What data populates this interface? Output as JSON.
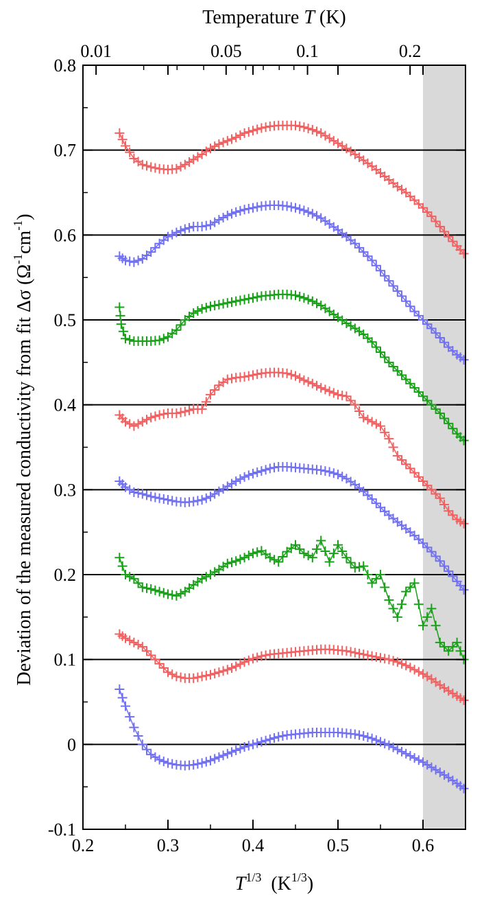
{
  "chart_data": {
    "type": "scatter",
    "title": "",
    "top_axis": {
      "label_prefix": "Temperature ",
      "label_var": "T",
      "label_suffix": " (K)",
      "ticks": [
        {
          "label": "0.01",
          "value": 0.01
        },
        {
          "label": "0.05",
          "value": 0.05
        },
        {
          "label": "0.1",
          "value": 0.1
        },
        {
          "label": "0.2",
          "value": 0.2
        }
      ]
    },
    "xlabel_var": "T",
    "xlabel_sup": "1/3",
    "xlabel_unit": "(K",
    "xlabel_unit_sup": "1/3",
    "xlabel_close": ")",
    "ylabel_text": "Deviation of the measured conductivity from fit  Δσ  (Ω",
    "ylabel_sup1": "-1",
    "ylabel_mid": "cm",
    "ylabel_sup2": "-1",
    "ylabel_close": ")",
    "xlim": [
      0.2,
      0.65
    ],
    "ylim": [
      -0.1,
      0.8
    ],
    "x_ticks": [
      "0.2",
      "0.3",
      "0.4",
      "0.5",
      "0.6"
    ],
    "y_ticks": [
      "-0.1",
      "0",
      "0.1",
      "0.2",
      "0.3",
      "0.4",
      "0.5",
      "0.6",
      "0.7",
      "0.8"
    ],
    "reference_lines": [
      0,
      0.1,
      0.2,
      0.3,
      0.4,
      0.5,
      0.6,
      0.7
    ],
    "shaded_region": {
      "from": 0.6,
      "to": 0.65,
      "color": "#d9d9d9"
    },
    "colors": {
      "red": "#f06060",
      "blue": "#7070f0",
      "green": "#18a018"
    },
    "series": [
      {
        "color": "red",
        "offset": 0.7,
        "x": [
          0.243,
          0.25,
          0.26,
          0.27,
          0.28,
          0.29,
          0.3,
          0.31,
          0.32,
          0.33,
          0.34,
          0.35,
          0.36,
          0.37,
          0.38,
          0.39,
          0.4,
          0.41,
          0.42,
          0.43,
          0.44,
          0.45,
          0.46,
          0.47,
          0.48,
          0.49,
          0.5,
          0.51,
          0.52,
          0.53,
          0.54,
          0.55,
          0.56,
          0.57,
          0.58,
          0.59,
          0.6,
          0.61,
          0.62,
          0.63,
          0.64,
          0.648
        ],
        "y": [
          0.72,
          0.705,
          0.69,
          0.683,
          0.68,
          0.678,
          0.677,
          0.678,
          0.683,
          0.689,
          0.695,
          0.702,
          0.707,
          0.711,
          0.715,
          0.72,
          0.723,
          0.726,
          0.728,
          0.729,
          0.729,
          0.729,
          0.727,
          0.724,
          0.72,
          0.714,
          0.708,
          0.702,
          0.695,
          0.688,
          0.681,
          0.673,
          0.665,
          0.657,
          0.65,
          0.641,
          0.632,
          0.622,
          0.61,
          0.598,
          0.587,
          0.578
        ]
      },
      {
        "color": "blue",
        "offset": 0.6,
        "x": [
          0.243,
          0.25,
          0.26,
          0.27,
          0.28,
          0.29,
          0.3,
          0.31,
          0.32,
          0.33,
          0.34,
          0.35,
          0.36,
          0.37,
          0.38,
          0.39,
          0.4,
          0.41,
          0.42,
          0.43,
          0.44,
          0.45,
          0.46,
          0.47,
          0.48,
          0.49,
          0.5,
          0.51,
          0.52,
          0.53,
          0.54,
          0.55,
          0.56,
          0.57,
          0.58,
          0.59,
          0.6,
          0.61,
          0.62,
          0.63,
          0.64,
          0.648
        ],
        "y": [
          0.575,
          0.57,
          0.568,
          0.572,
          0.58,
          0.59,
          0.598,
          0.603,
          0.607,
          0.61,
          0.61,
          0.612,
          0.618,
          0.623,
          0.627,
          0.63,
          0.632,
          0.634,
          0.635,
          0.635,
          0.634,
          0.632,
          0.629,
          0.625,
          0.62,
          0.613,
          0.606,
          0.598,
          0.59,
          0.58,
          0.57,
          0.558,
          0.546,
          0.534,
          0.522,
          0.51,
          0.5,
          0.49,
          0.479,
          0.468,
          0.459,
          0.453
        ]
      },
      {
        "color": "green",
        "offset": 0.5,
        "x": [
          0.243,
          0.245,
          0.25,
          0.26,
          0.27,
          0.28,
          0.29,
          0.3,
          0.31,
          0.32,
          0.33,
          0.34,
          0.35,
          0.36,
          0.37,
          0.38,
          0.39,
          0.4,
          0.41,
          0.42,
          0.43,
          0.44,
          0.45,
          0.46,
          0.47,
          0.48,
          0.49,
          0.5,
          0.51,
          0.52,
          0.53,
          0.54,
          0.55,
          0.56,
          0.57,
          0.58,
          0.59,
          0.6,
          0.61,
          0.62,
          0.63,
          0.64,
          0.648
        ],
        "y": [
          0.515,
          0.495,
          0.478,
          0.475,
          0.475,
          0.475,
          0.476,
          0.48,
          0.488,
          0.5,
          0.508,
          0.513,
          0.516,
          0.518,
          0.52,
          0.522,
          0.524,
          0.526,
          0.528,
          0.529,
          0.53,
          0.53,
          0.529,
          0.526,
          0.522,
          0.517,
          0.51,
          0.503,
          0.496,
          0.49,
          0.483,
          0.474,
          0.462,
          0.45,
          0.44,
          0.43,
          0.42,
          0.41,
          0.4,
          0.39,
          0.378,
          0.366,
          0.358
        ]
      },
      {
        "color": "red",
        "offset": 0.4,
        "x": [
          0.243,
          0.25,
          0.26,
          0.27,
          0.28,
          0.29,
          0.3,
          0.31,
          0.32,
          0.33,
          0.34,
          0.35,
          0.36,
          0.37,
          0.38,
          0.39,
          0.4,
          0.41,
          0.42,
          0.43,
          0.44,
          0.45,
          0.46,
          0.47,
          0.48,
          0.49,
          0.5,
          0.51,
          0.52,
          0.53,
          0.54,
          0.55,
          0.56,
          0.57,
          0.58,
          0.59,
          0.6,
          0.61,
          0.62,
          0.63,
          0.64,
          0.648
        ],
        "y": [
          0.388,
          0.38,
          0.375,
          0.38,
          0.385,
          0.388,
          0.39,
          0.39,
          0.392,
          0.395,
          0.395,
          0.412,
          0.423,
          0.43,
          0.432,
          0.433,
          0.435,
          0.437,
          0.438,
          0.438,
          0.437,
          0.434,
          0.429,
          0.425,
          0.42,
          0.416,
          0.412,
          0.41,
          0.4,
          0.385,
          0.38,
          0.375,
          0.36,
          0.34,
          0.33,
          0.32,
          0.31,
          0.3,
          0.29,
          0.275,
          0.265,
          0.26
        ]
      },
      {
        "color": "blue",
        "offset": 0.3,
        "x": [
          0.243,
          0.25,
          0.26,
          0.27,
          0.28,
          0.29,
          0.3,
          0.31,
          0.32,
          0.33,
          0.34,
          0.35,
          0.36,
          0.37,
          0.38,
          0.39,
          0.4,
          0.41,
          0.42,
          0.43,
          0.44,
          0.45,
          0.46,
          0.47,
          0.48,
          0.49,
          0.5,
          0.51,
          0.52,
          0.53,
          0.54,
          0.55,
          0.56,
          0.57,
          0.58,
          0.59,
          0.6,
          0.61,
          0.62,
          0.63,
          0.64,
          0.648
        ],
        "y": [
          0.31,
          0.303,
          0.297,
          0.295,
          0.292,
          0.29,
          0.288,
          0.286,
          0.285,
          0.286,
          0.288,
          0.292,
          0.298,
          0.304,
          0.31,
          0.315,
          0.319,
          0.322,
          0.325,
          0.327,
          0.327,
          0.326,
          0.325,
          0.324,
          0.323,
          0.321,
          0.318,
          0.313,
          0.306,
          0.298,
          0.289,
          0.279,
          0.27,
          0.262,
          0.254,
          0.246,
          0.237,
          0.227,
          0.216,
          0.204,
          0.192,
          0.182
        ]
      },
      {
        "color": "green",
        "offset": 0.2,
        "x": [
          0.243,
          0.25,
          0.26,
          0.27,
          0.28,
          0.29,
          0.3,
          0.31,
          0.32,
          0.33,
          0.34,
          0.35,
          0.36,
          0.37,
          0.38,
          0.39,
          0.4,
          0.41,
          0.42,
          0.43,
          0.44,
          0.45,
          0.46,
          0.47,
          0.48,
          0.49,
          0.5,
          0.51,
          0.52,
          0.53,
          0.54,
          0.55,
          0.56,
          0.57,
          0.58,
          0.59,
          0.6,
          0.61,
          0.62,
          0.63,
          0.64,
          0.648
        ],
        "y": [
          0.22,
          0.2,
          0.195,
          0.185,
          0.183,
          0.18,
          0.177,
          0.175,
          0.18,
          0.188,
          0.195,
          0.2,
          0.206,
          0.213,
          0.216,
          0.22,
          0.225,
          0.228,
          0.22,
          0.215,
          0.227,
          0.235,
          0.225,
          0.22,
          0.24,
          0.215,
          0.235,
          0.22,
          0.208,
          0.21,
          0.19,
          0.2,
          0.17,
          0.15,
          0.18,
          0.19,
          0.14,
          0.16,
          0.12,
          0.11,
          0.12,
          0.1
        ]
      },
      {
        "color": "red",
        "offset": 0.1,
        "x": [
          0.243,
          0.25,
          0.26,
          0.27,
          0.28,
          0.29,
          0.3,
          0.31,
          0.32,
          0.33,
          0.34,
          0.35,
          0.36,
          0.37,
          0.38,
          0.39,
          0.4,
          0.41,
          0.42,
          0.43,
          0.44,
          0.45,
          0.46,
          0.47,
          0.48,
          0.49,
          0.5,
          0.51,
          0.52,
          0.53,
          0.54,
          0.55,
          0.56,
          0.57,
          0.58,
          0.59,
          0.6,
          0.61,
          0.62,
          0.63,
          0.64,
          0.648
        ],
        "y": [
          0.13,
          0.125,
          0.12,
          0.115,
          0.105,
          0.095,
          0.085,
          0.08,
          0.078,
          0.078,
          0.08,
          0.082,
          0.085,
          0.088,
          0.092,
          0.097,
          0.101,
          0.104,
          0.106,
          0.107,
          0.108,
          0.109,
          0.11,
          0.111,
          0.112,
          0.112,
          0.111,
          0.11,
          0.108,
          0.106,
          0.104,
          0.102,
          0.1,
          0.097,
          0.093,
          0.088,
          0.083,
          0.077,
          0.07,
          0.063,
          0.057,
          0.052
        ]
      },
      {
        "color": "blue",
        "offset": 0.0,
        "x": [
          0.243,
          0.25,
          0.26,
          0.27,
          0.28,
          0.29,
          0.3,
          0.31,
          0.32,
          0.33,
          0.34,
          0.35,
          0.36,
          0.37,
          0.38,
          0.39,
          0.4,
          0.41,
          0.42,
          0.43,
          0.44,
          0.45,
          0.46,
          0.47,
          0.48,
          0.49,
          0.5,
          0.51,
          0.52,
          0.53,
          0.54,
          0.55,
          0.56,
          0.57,
          0.58,
          0.59,
          0.6,
          0.61,
          0.62,
          0.63,
          0.64,
          0.648
        ],
        "y": [
          0.065,
          0.045,
          0.02,
          0.0,
          -0.012,
          -0.018,
          -0.022,
          -0.024,
          -0.025,
          -0.024,
          -0.022,
          -0.019,
          -0.015,
          -0.011,
          -0.007,
          -0.003,
          0.0,
          0.003,
          0.006,
          0.009,
          0.011,
          0.012,
          0.013,
          0.014,
          0.014,
          0.014,
          0.014,
          0.013,
          0.012,
          0.01,
          0.007,
          0.003,
          -0.001,
          -0.006,
          -0.011,
          -0.016,
          -0.021,
          -0.027,
          -0.033,
          -0.039,
          -0.046,
          -0.052
        ]
      }
    ]
  }
}
